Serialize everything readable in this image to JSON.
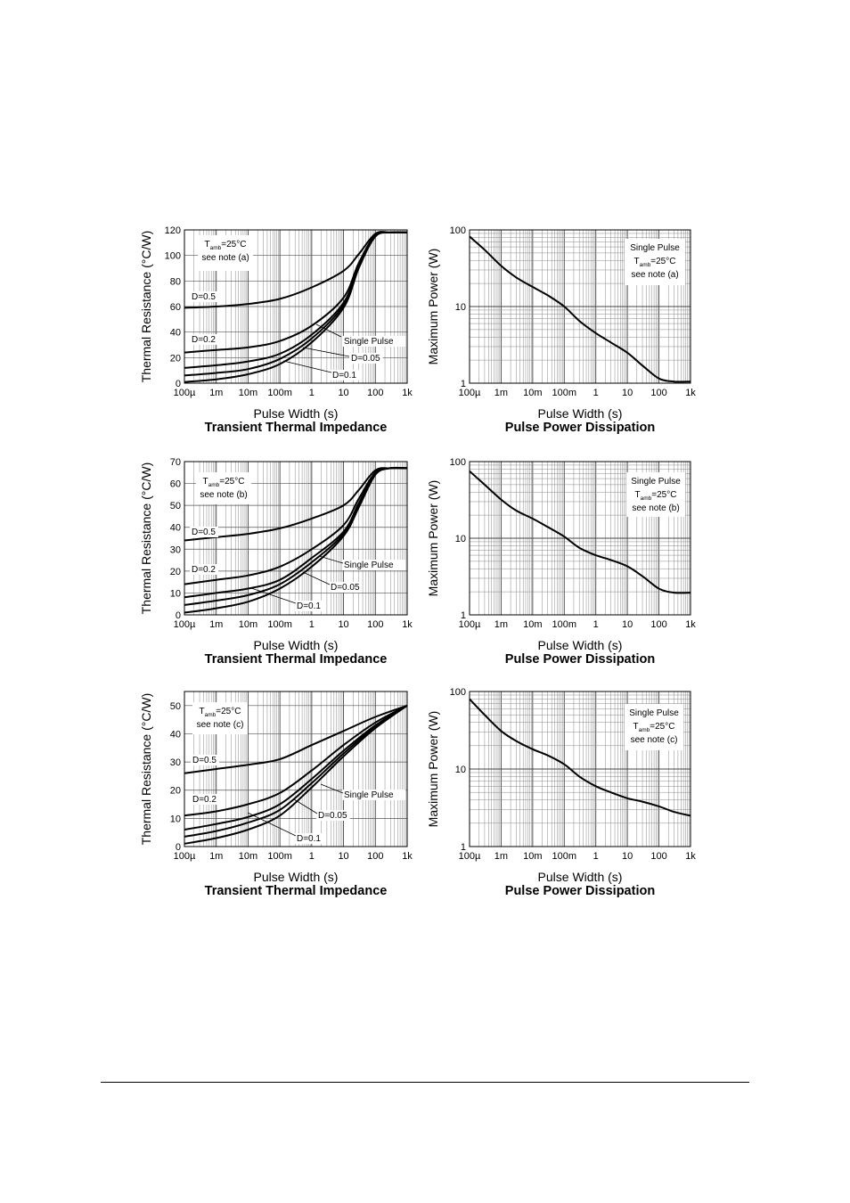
{
  "chart_data": [
    {
      "type": "line",
      "title": "Transient Thermal Impedance",
      "xlabel": "Pulse Width (s)",
      "ylabel": "Thermal Resistance (°C/W)",
      "xscale": "log",
      "xlim": [
        0.0001,
        1000
      ],
      "ylim": [
        0,
        120
      ],
      "grid": "log-minor",
      "x_ticks": [
        0.0001,
        0.001,
        0.01,
        0.1,
        1,
        10,
        100,
        1000
      ],
      "x_tick_labels": [
        "100µ",
        "1m",
        "10m",
        "100m",
        "1",
        "10",
        "100",
        "1k"
      ],
      "y_ticks": [
        0,
        20,
        40,
        60,
        80,
        100,
        120
      ],
      "y_tick_labels": [
        "0",
        "20",
        "40",
        "60",
        "80",
        "100",
        "120"
      ],
      "note": {
        "lines": [
          {
            "main": "T",
            "sub": "amb",
            "rest": "=25°C"
          },
          {
            "main": "see note (a)"
          }
        ]
      },
      "series": [
        {
          "name": "D=0.5",
          "x": [
            0.0001,
            0.001,
            0.01,
            0.1,
            1,
            10,
            30,
            100,
            300,
            1000
          ],
          "y": [
            59,
            60,
            62,
            66,
            75,
            88,
            101,
            117,
            118,
            118
          ]
        },
        {
          "name": "D=0.2",
          "x": [
            0.0001,
            0.001,
            0.01,
            0.1,
            1,
            10,
            30,
            100,
            300,
            1000
          ],
          "y": [
            24,
            26,
            28,
            33,
            45,
            67,
            94,
            116,
            118,
            118
          ]
        },
        {
          "name": "D=0.1",
          "x": [
            0.0001,
            0.001,
            0.01,
            0.1,
            1,
            10,
            30,
            100,
            300,
            1000
          ],
          "y": [
            12,
            14,
            17,
            23,
            38,
            63,
            92,
            115,
            118,
            118
          ]
        },
        {
          "name": "D=0.05",
          "x": [
            0.0001,
            0.001,
            0.01,
            0.1,
            1,
            10,
            30,
            100,
            300,
            1000
          ],
          "y": [
            6,
            8,
            11,
            19,
            35,
            61,
            91,
            115,
            118,
            118
          ]
        },
        {
          "name": "Single Pulse",
          "x": [
            0.0001,
            0.001,
            0.01,
            0.1,
            1,
            10,
            30,
            100,
            300,
            1000
          ],
          "y": [
            1,
            3,
            7,
            15,
            32,
            59,
            90,
            115,
            118,
            118
          ]
        }
      ],
      "annotations": [
        {
          "text": "D=0.5"
        },
        {
          "text": "D=0.2"
        },
        {
          "text": "Single Pulse"
        },
        {
          "text": "D=0.05"
        },
        {
          "text": "D=0.1"
        }
      ]
    },
    {
      "type": "line",
      "title": "Pulse Power Dissipation",
      "xlabel": "Pulse Width (s)",
      "ylabel": "Maximum Power (W)",
      "xscale": "log",
      "yscale": "log",
      "xlim": [
        0.0001,
        1000
      ],
      "ylim": [
        1,
        100
      ],
      "grid": "log-minor",
      "x_ticks": [
        0.0001,
        0.001,
        0.01,
        0.1,
        1,
        10,
        100,
        1000
      ],
      "x_tick_labels": [
        "100µ",
        "1m",
        "10m",
        "100m",
        "1",
        "10",
        "100",
        "1k"
      ],
      "y_ticks": [
        1,
        10,
        100
      ],
      "y_tick_labels": [
        "1",
        "10",
        "100"
      ],
      "note": {
        "lines": [
          {
            "main": "Single Pulse"
          },
          {
            "main": "T",
            "sub": "amb",
            "rest": "=25°C"
          },
          {
            "main": "see note (a)"
          }
        ]
      },
      "series": [
        {
          "name": "Single Pulse",
          "x": [
            0.0001,
            0.0003,
            0.001,
            0.003,
            0.01,
            0.03,
            0.1,
            0.3,
            1,
            3,
            10,
            30,
            100,
            300,
            1000
          ],
          "y": [
            82,
            55,
            34,
            24,
            18,
            14,
            10,
            6.5,
            4.5,
            3.4,
            2.5,
            1.7,
            1.15,
            1.05,
            1.05
          ]
        }
      ]
    },
    {
      "type": "line",
      "title": "Transient Thermal Impedance",
      "xlabel": "Pulse Width (s)",
      "ylabel": "Thermal Resistance (°C/W)",
      "xscale": "log",
      "xlim": [
        0.0001,
        1000
      ],
      "ylim": [
        0,
        70
      ],
      "grid": "log-minor",
      "x_ticks": [
        0.0001,
        0.001,
        0.01,
        0.1,
        1,
        10,
        100,
        1000
      ],
      "x_tick_labels": [
        "100µ",
        "1m",
        "10m",
        "100m",
        "1",
        "10",
        "100",
        "1k"
      ],
      "y_ticks": [
        0,
        10,
        20,
        30,
        40,
        50,
        60,
        70
      ],
      "y_tick_labels": [
        "0",
        "10",
        "20",
        "30",
        "40",
        "50",
        "60",
        "70"
      ],
      "note": {
        "lines": [
          {
            "main": "T",
            "sub": "amb",
            "rest": "=25°C"
          },
          {
            "main": "see note (b)"
          }
        ]
      },
      "series": [
        {
          "name": "D=0.5",
          "x": [
            0.0001,
            0.001,
            0.01,
            0.1,
            1,
            10,
            30,
            100,
            300,
            1000
          ],
          "y": [
            34,
            35.5,
            37,
            39.5,
            44,
            50,
            57,
            66,
            67,
            67
          ]
        },
        {
          "name": "D=0.2",
          "x": [
            0.0001,
            0.001,
            0.01,
            0.1,
            1,
            10,
            30,
            100,
            300,
            1000
          ],
          "y": [
            14,
            16,
            18,
            22,
            30,
            41,
            53,
            65,
            67,
            67
          ]
        },
        {
          "name": "D=0.1",
          "x": [
            0.0001,
            0.001,
            0.01,
            0.1,
            1,
            10,
            30,
            100,
            300,
            1000
          ],
          "y": [
            8,
            10,
            12,
            16,
            26,
            38,
            51,
            65,
            67,
            67
          ]
        },
        {
          "name": "D=0.05",
          "x": [
            0.0001,
            0.001,
            0.01,
            0.1,
            1,
            10,
            30,
            100,
            300,
            1000
          ],
          "y": [
            4.5,
            6.5,
            9,
            14,
            24,
            37,
            50,
            65,
            67,
            67
          ]
        },
        {
          "name": "Single Pulse",
          "x": [
            0.0001,
            0.001,
            0.01,
            0.1,
            1,
            10,
            30,
            100,
            300,
            1000
          ],
          "y": [
            1,
            3,
            6,
            12,
            22,
            36,
            49,
            64,
            67,
            67
          ]
        }
      ],
      "annotations": [
        {
          "text": "D=0.5"
        },
        {
          "text": "D=0.2"
        },
        {
          "text": "Single Pulse"
        },
        {
          "text": "D=0.05"
        },
        {
          "text": "D=0.1"
        }
      ]
    },
    {
      "type": "line",
      "title": "Pulse Power Dissipation",
      "xlabel": "Pulse Width (s)",
      "ylabel": "Maximum Power (W)",
      "xscale": "log",
      "yscale": "log",
      "xlim": [
        0.0001,
        1000
      ],
      "ylim": [
        1,
        100
      ],
      "grid": "log-minor",
      "x_ticks": [
        0.0001,
        0.001,
        0.01,
        0.1,
        1,
        10,
        100,
        1000
      ],
      "x_tick_labels": [
        "100µ",
        "1m",
        "10m",
        "100m",
        "1",
        "10",
        "100",
        "1k"
      ],
      "y_ticks": [
        1,
        10,
        100
      ],
      "y_tick_labels": [
        "1",
        "10",
        "100"
      ],
      "note": {
        "lines": [
          {
            "main": "Single Pulse"
          },
          {
            "main": "T",
            "sub": "amb",
            "rest": "=25°C"
          },
          {
            "main": "see note (b)"
          }
        ]
      },
      "series": [
        {
          "name": "Single Pulse",
          "x": [
            0.0001,
            0.0003,
            0.001,
            0.003,
            0.01,
            0.03,
            0.1,
            0.3,
            1,
            3,
            10,
            30,
            100,
            300,
            1000
          ],
          "y": [
            75,
            50,
            32,
            23,
            18,
            14,
            10.5,
            7.5,
            6,
            5.2,
            4.3,
            3.2,
            2.2,
            1.95,
            1.95
          ]
        }
      ]
    },
    {
      "type": "line",
      "title": "Transient Thermal Impedance",
      "xlabel": "Pulse Width (s)",
      "ylabel": "Thermal Resistance (°C/W)",
      "xscale": "log",
      "xlim": [
        0.0001,
        1000
      ],
      "ylim": [
        0,
        55
      ],
      "grid": "log-minor",
      "x_ticks": [
        0.0001,
        0.001,
        0.01,
        0.1,
        1,
        10,
        100,
        1000
      ],
      "x_tick_labels": [
        "100µ",
        "1m",
        "10m",
        "100m",
        "1",
        "10",
        "100",
        "1k"
      ],
      "y_ticks": [
        0,
        10,
        20,
        30,
        40,
        50
      ],
      "y_tick_labels": [
        "0",
        "10",
        "20",
        "30",
        "40",
        "50"
      ],
      "note": {
        "lines": [
          {
            "main": "T",
            "sub": "amb",
            "rest": "=25°C"
          },
          {
            "main": "see note (c)"
          }
        ]
      },
      "series": [
        {
          "name": "D=0.5",
          "x": [
            0.0001,
            0.001,
            0.01,
            0.1,
            1,
            10,
            100,
            1000
          ],
          "y": [
            26,
            27.5,
            29,
            31,
            36,
            41,
            46,
            50
          ]
        },
        {
          "name": "D=0.2",
          "x": [
            0.0001,
            0.001,
            0.01,
            0.1,
            1,
            10,
            100,
            1000
          ],
          "y": [
            11,
            12.5,
            15,
            19,
            27,
            36,
            44,
            50
          ]
        },
        {
          "name": "D=0.1",
          "x": [
            0.0001,
            0.001,
            0.01,
            0.1,
            1,
            10,
            100,
            1000
          ],
          "y": [
            6,
            8,
            10.5,
            15,
            24,
            34,
            43,
            50
          ]
        },
        {
          "name": "D=0.05",
          "x": [
            0.0001,
            0.001,
            0.01,
            0.1,
            1,
            10,
            100,
            1000
          ],
          "y": [
            3.5,
            5.5,
            8.5,
            13,
            22.5,
            33,
            42.5,
            50
          ]
        },
        {
          "name": "Single Pulse",
          "x": [
            0.0001,
            0.001,
            0.01,
            0.1,
            1,
            10,
            100,
            1000
          ],
          "y": [
            1,
            3,
            6,
            11,
            21,
            32,
            42,
            50
          ]
        }
      ],
      "annotations": [
        {
          "text": "D=0.5"
        },
        {
          "text": "D=0.2"
        },
        {
          "text": "Single Pulse"
        },
        {
          "text": "D=0.05"
        },
        {
          "text": "D=0.1"
        }
      ]
    },
    {
      "type": "line",
      "title": "Pulse Power Dissipation",
      "xlabel": "Pulse Width (s)",
      "ylabel": "Maximum Power (W)",
      "xscale": "log",
      "yscale": "log",
      "xlim": [
        0.0001,
        1000
      ],
      "ylim": [
        1,
        100
      ],
      "grid": "log-minor",
      "x_ticks": [
        0.0001,
        0.001,
        0.01,
        0.1,
        1,
        10,
        100,
        1000
      ],
      "x_tick_labels": [
        "100µ",
        "1m",
        "10m",
        "100m",
        "1",
        "10",
        "100",
        "1k"
      ],
      "y_ticks": [
        1,
        10,
        100
      ],
      "y_tick_labels": [
        "1",
        "10",
        "100"
      ],
      "note": {
        "lines": [
          {
            "main": "Single Pulse"
          },
          {
            "main": "T",
            "sub": "amb",
            "rest": "=25°C"
          },
          {
            "main": "see note (c)"
          }
        ]
      },
      "series": [
        {
          "name": "Single Pulse",
          "x": [
            0.0001,
            0.0003,
            0.001,
            0.003,
            0.01,
            0.03,
            0.1,
            0.3,
            1,
            3,
            10,
            30,
            100,
            300,
            1000
          ],
          "y": [
            80,
            50,
            31,
            23,
            18,
            15,
            11.5,
            8,
            6,
            5,
            4.2,
            3.8,
            3.3,
            2.8,
            2.5
          ]
        }
      ]
    }
  ]
}
